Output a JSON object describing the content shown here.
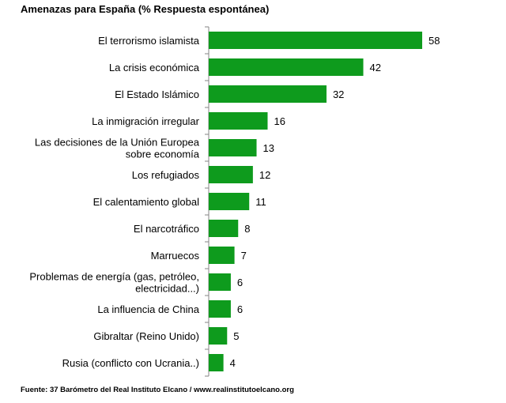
{
  "chart_data": {
    "type": "bar",
    "orientation": "horizontal",
    "title": "Amenazas para España (% Respuesta espontánea)",
    "source": "Fuente: 37 Barómetro del Real Instituto Elcano / www.realinstitutoelcano.org",
    "categories": [
      [
        "El terrorismo islamista"
      ],
      [
        "La crisis económica"
      ],
      [
        "El Estado Islámico"
      ],
      [
        "La inmigración irregular"
      ],
      [
        "Las decisiones de  la Unión Europea",
        "sobre economía"
      ],
      [
        "Los refugiados"
      ],
      [
        "El calentamiento global"
      ],
      [
        "El narcotráfico"
      ],
      [
        "Marruecos"
      ],
      [
        "Problemas de energía (gas, petróleo,",
        "electricidad...)"
      ],
      [
        "La influencia de China"
      ],
      [
        "Gibraltar (Reino Unido)"
      ],
      [
        "Rusia (conflicto con Ucrania..)"
      ]
    ],
    "values": [
      58,
      42,
      32,
      16,
      13,
      12,
      11,
      8,
      7,
      6,
      6,
      5,
      4
    ],
    "bar_color": "#0e9b1d",
    "axis_color": "#868686",
    "grid": false,
    "legend": "none"
  }
}
